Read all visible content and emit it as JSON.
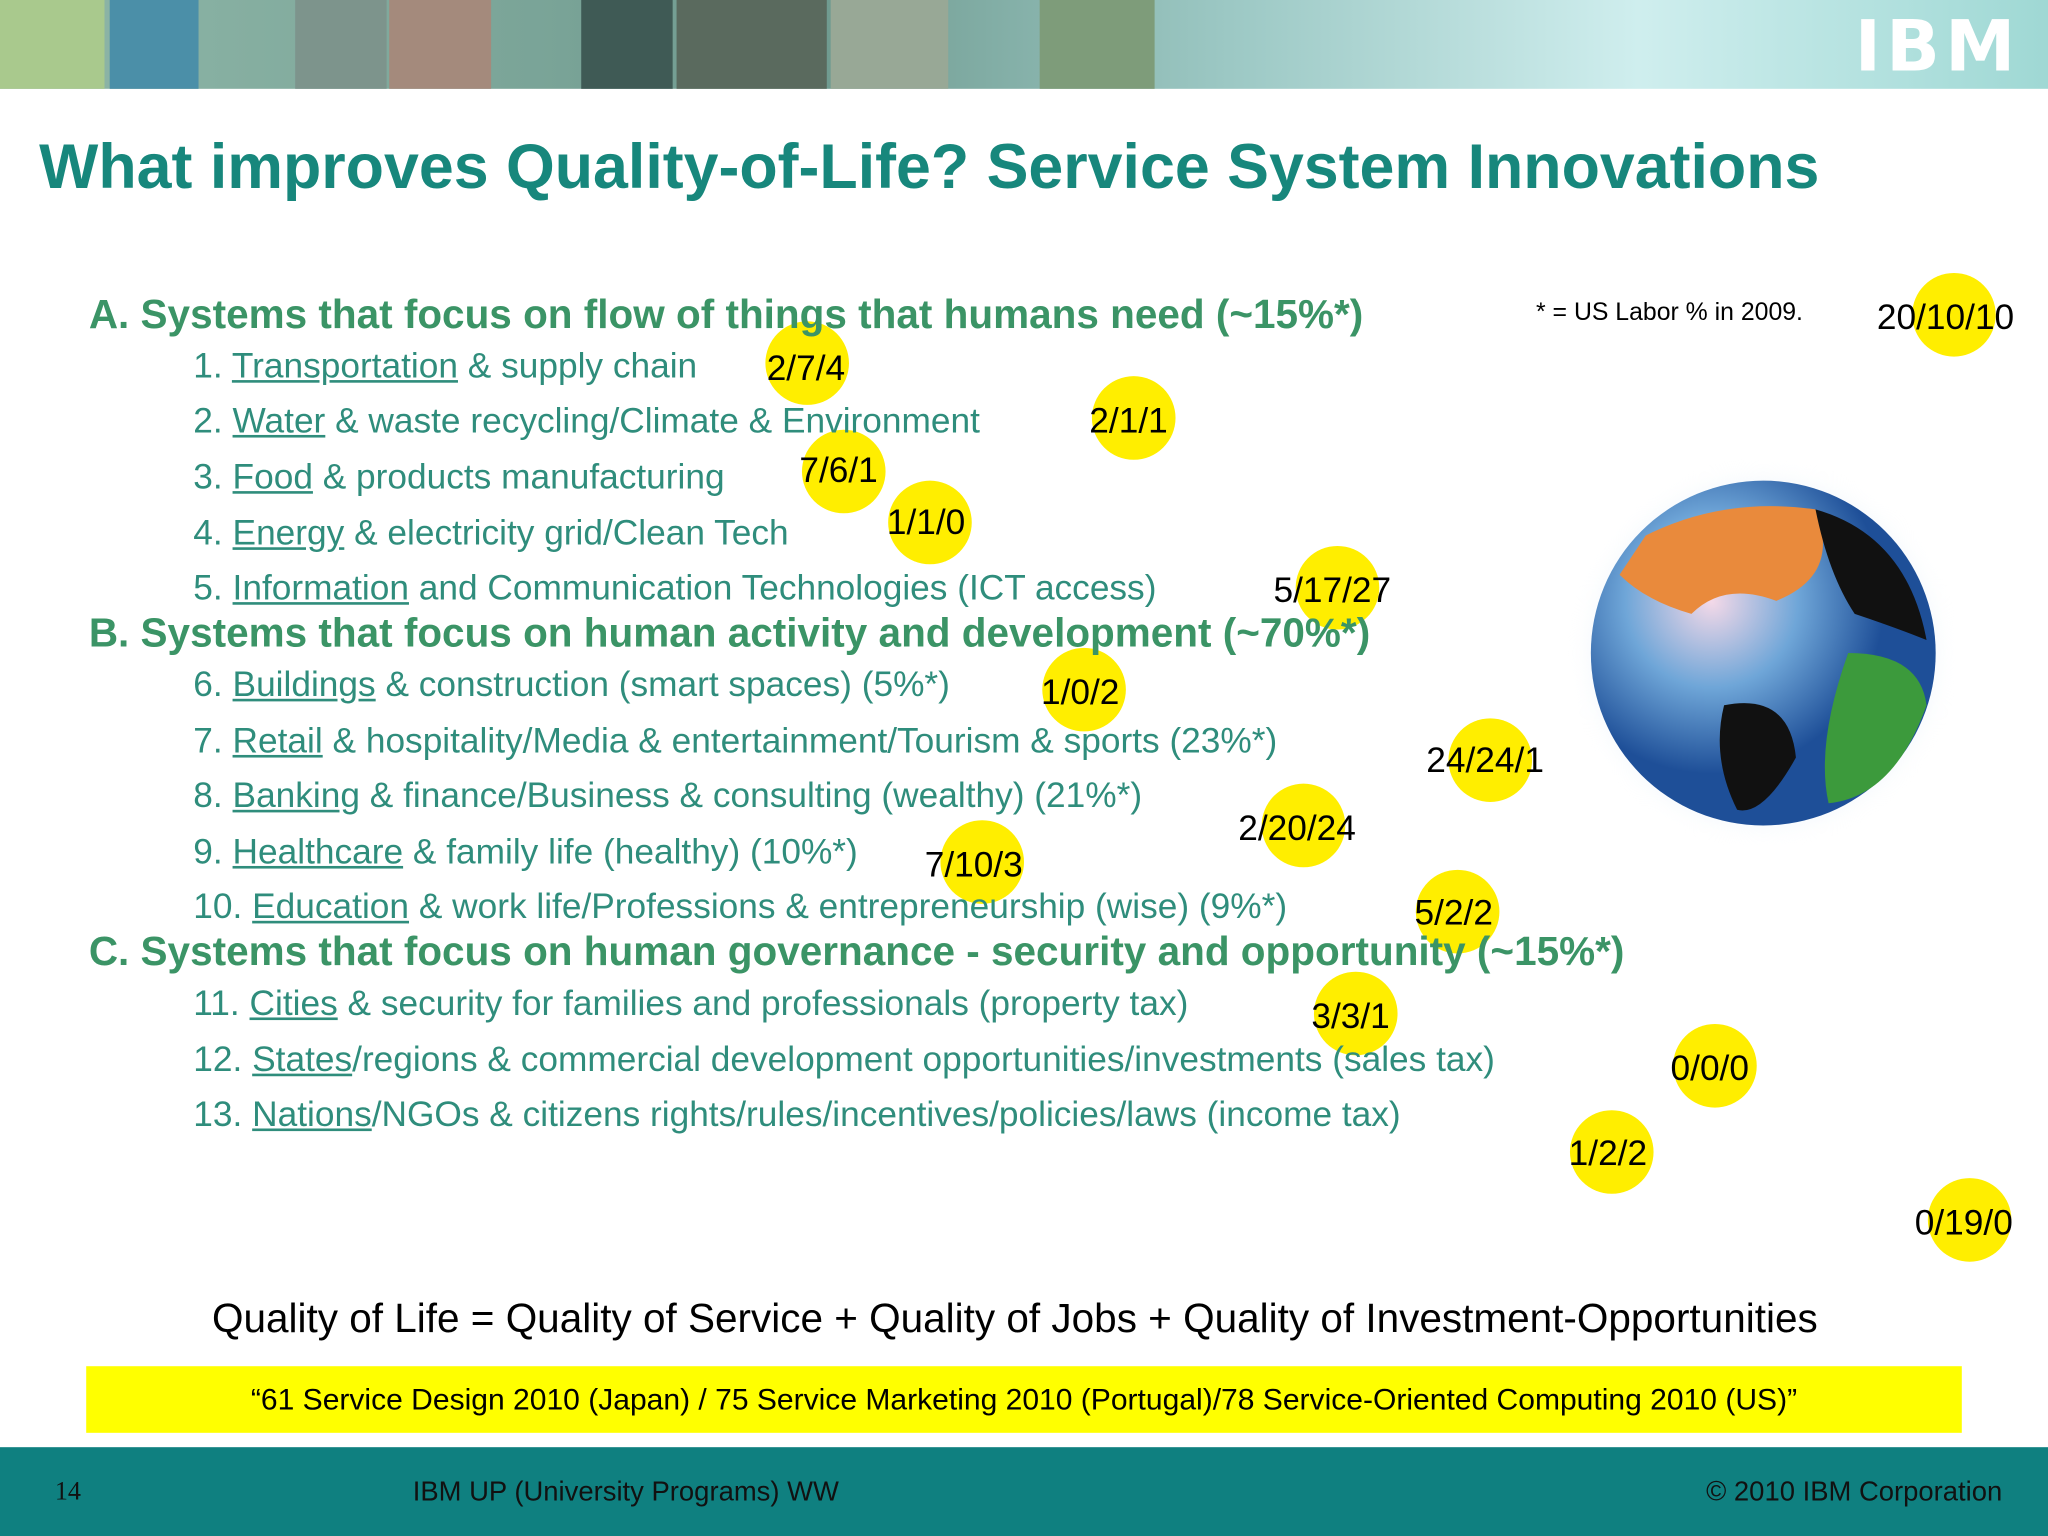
{
  "header": {
    "logo": "IBM"
  },
  "title": "What improves Quality-of-Life? Service System Innovations",
  "note": "* = US Labor % in 2009.",
  "sections": [
    {
      "heading": "A. Systems that focus on flow of things that humans need (~15%*)",
      "items": [
        {
          "number": "1.",
          "link": "Transportation",
          "text": " & supply chain"
        },
        {
          "number": "2.",
          "link": "Water",
          "text": " & waste recycling/Climate & Environment"
        },
        {
          "number": "3.",
          "link": "Food",
          "text": " & products manufacturing"
        },
        {
          "number": "4.",
          "link": "Energy",
          "text": " & electricity grid/Clean Tech"
        },
        {
          "number": "5.",
          "link": "Information",
          "text": " and Communication Technologies (ICT access)"
        }
      ]
    },
    {
      "heading": "B. Systems that focus on human activity and development (~70%*)",
      "items": [
        {
          "number": "6.",
          "link": "Buildings",
          "text": " & construction (smart spaces) (5%*)"
        },
        {
          "number": "7.",
          "link": "Retail",
          "text": " & hospitality/Media & entertainment/Tourism & sports (23%*)"
        },
        {
          "number": "8.",
          "link": "Banking",
          "text": " & finance/Business & consulting (wealthy) (21%*)"
        },
        {
          "number": "9.",
          "link": "Healthcare",
          "text": " & family life (healthy) (10%*)"
        },
        {
          "number": "10.",
          "link": "Education",
          "text": " & work life/Professions & entrepreneurship (wise) (9%*)"
        }
      ]
    },
    {
      "heading": "C. Systems that focus on human governance - security and opportunity (~15%*)",
      "items": [
        {
          "number": "11.",
          "link": "Cities",
          "text": " & security for families and professionals (property tax)"
        },
        {
          "number": "12.",
          "link": "States",
          "text": "/regions & commercial development opportunities/investments (sales tax)"
        },
        {
          "number": "13.",
          "link": "Nations",
          "text": "/NGOs & citizens rights/rules/incentives/policies/laws (income tax)"
        }
      ]
    }
  ],
  "badges": [
    "20/10/10",
    "2/7/4",
    "2/1/1",
    "7/6/1",
    "1/1/0",
    "5/17/27",
    "1/0/2",
    "24/24/1",
    "2/20/24",
    "7/10/3",
    "5/2/2",
    "3/3/1",
    "0/0/0",
    "1/2/2",
    "0/19/0"
  ],
  "formula": "Quality of Life = Quality of Service + Quality of Jobs + Quality of Investment-Opportunities",
  "banner": "“61 Service Design 2010 (Japan) / 75 Service Marketing 2010 (Portugal)/78 Service-Oriented Computing 2010 (US)”",
  "footer": {
    "page": "14",
    "center": "IBM UP (University Programs) WW",
    "copyright": "© 2010 IBM Corporation"
  }
}
